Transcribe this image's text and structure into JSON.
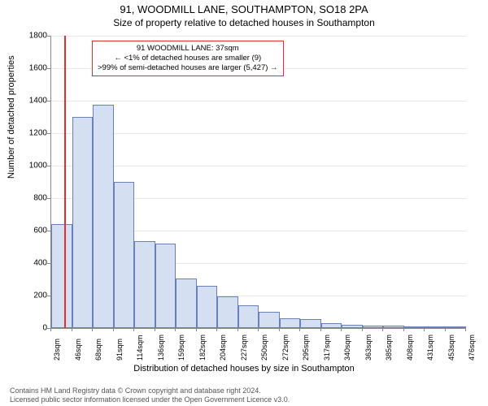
{
  "title": "91, WOODMILL LANE, SOUTHAMPTON, SO18 2PA",
  "subtitle": "Size of property relative to detached houses in Southampton",
  "ylabel": "Number of detached properties",
  "xlabel": "Distribution of detached houses by size in Southampton",
  "chart": {
    "type": "histogram",
    "ylim": [
      0,
      1800
    ],
    "ytick_step": 200,
    "background_color": "#ffffff",
    "grid_color": "#e8e8e8",
    "bar_fill": "#d5dff2",
    "bar_border": "#6a80b8",
    "marker_color": "#e03030",
    "marker_x_value": 37,
    "x_start": 23,
    "x_step": 22.65,
    "x_labels": [
      "23sqm",
      "46sqm",
      "68sqm",
      "91sqm",
      "114sqm",
      "136sqm",
      "159sqm",
      "182sqm",
      "204sqm",
      "227sqm",
      "250sqm",
      "272sqm",
      "295sqm",
      "317sqm",
      "340sqm",
      "363sqm",
      "385sqm",
      "408sqm",
      "431sqm",
      "453sqm",
      "476sqm"
    ],
    "bars": [
      640,
      1300,
      1375,
      900,
      535,
      520,
      305,
      260,
      195,
      140,
      100,
      60,
      55,
      30,
      20,
      15,
      15,
      10,
      5,
      5
    ],
    "title_fontsize": 13,
    "label_fontsize": 11,
    "tick_fontsize": 10
  },
  "annotation": {
    "line1": "91 WOODMILL LANE: 37sqm",
    "line2": "← <1% of detached houses are smaller (9)",
    "line3": ">99% of semi-detached houses are larger (5,427) →"
  },
  "footer": {
    "line1": "Contains HM Land Registry data © Crown copyright and database right 2024.",
    "line2": "Licensed public sector information licensed under the Open Government Licence v3.0."
  }
}
